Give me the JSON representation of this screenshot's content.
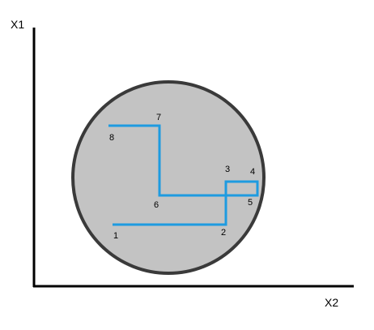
{
  "axes": {
    "y_label": "X1",
    "x_label": "X2"
  },
  "region": {
    "fill_color": "#c3c3c3",
    "stroke_color": "#3a3a3a"
  },
  "path": {
    "color": "#1e9be0"
  },
  "points": [
    {
      "id": "1",
      "label": "1"
    },
    {
      "id": "2",
      "label": "2"
    },
    {
      "id": "3",
      "label": "3"
    },
    {
      "id": "4",
      "label": "4"
    },
    {
      "id": "5",
      "label": "5"
    },
    {
      "id": "6",
      "label": "6"
    },
    {
      "id": "7",
      "label": "7"
    },
    {
      "id": "8",
      "label": "8"
    }
  ]
}
